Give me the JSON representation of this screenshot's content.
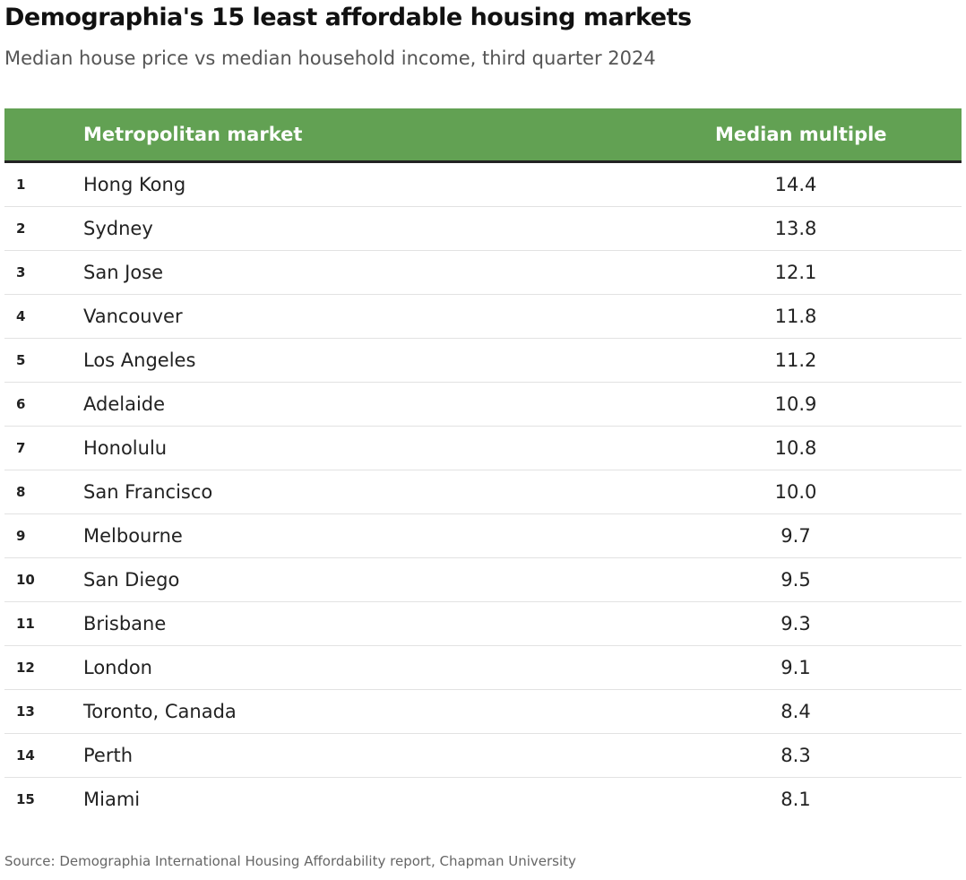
{
  "title": "Demographia's 15 least affordable housing markets",
  "subtitle": "Median house price vs median household income, third quarter 2024",
  "header": {
    "market": "Metropolitan market",
    "multiple": "Median multiple"
  },
  "header_color": "#62a153",
  "chart_data": {
    "type": "table",
    "columns": [
      "",
      "Metropolitan market",
      "Median multiple"
    ],
    "rows": [
      {
        "rank": "1",
        "market": "Hong Kong",
        "multiple": "14.4"
      },
      {
        "rank": "2",
        "market": "Sydney",
        "multiple": "13.8"
      },
      {
        "rank": "3",
        "market": "San Jose",
        "multiple": "12.1"
      },
      {
        "rank": "4",
        "market": "Vancouver",
        "multiple": "11.8"
      },
      {
        "rank": "5",
        "market": "Los Angeles",
        "multiple": "11.2"
      },
      {
        "rank": "6",
        "market": "Adelaide",
        "multiple": "10.9"
      },
      {
        "rank": "7",
        "market": "Honolulu",
        "multiple": "10.8"
      },
      {
        "rank": "8",
        "market": "San Francisco",
        "multiple": "10.0"
      },
      {
        "rank": "9",
        "market": "Melbourne",
        "multiple": "9.7"
      },
      {
        "rank": "10",
        "market": "San Diego",
        "multiple": "9.5"
      },
      {
        "rank": "11",
        "market": "Brisbane",
        "multiple": "9.3"
      },
      {
        "rank": "12",
        "market": "London",
        "multiple": "9.1"
      },
      {
        "rank": "13",
        "market": "Toronto, Canada",
        "multiple": "8.4"
      },
      {
        "rank": "14",
        "market": "Perth",
        "multiple": "8.3"
      },
      {
        "rank": "15",
        "market": "Miami",
        "multiple": "8.1"
      }
    ]
  },
  "source": "Source: Demographia International Housing Affordability report, Chapman University"
}
